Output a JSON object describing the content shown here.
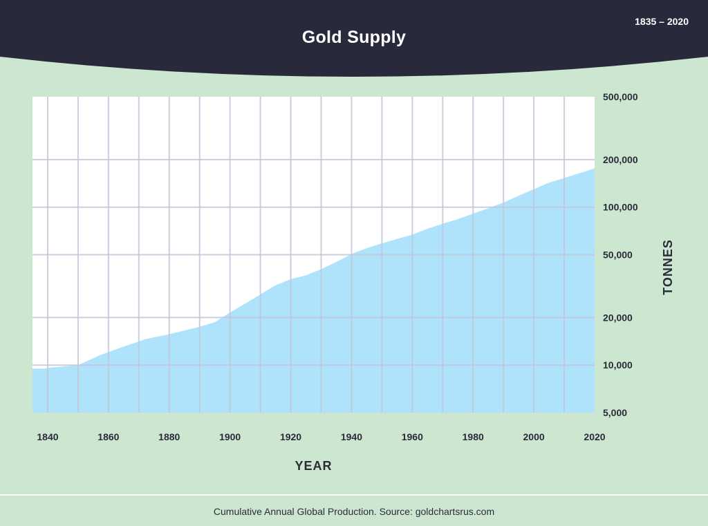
{
  "header": {
    "title": "Gold Supply",
    "date_range": "1835 – 2020",
    "background": "#282a3b"
  },
  "footer": {
    "text": "Cumulative Annual Global Production. Source: goldchartsrus.com"
  },
  "colors": {
    "page_background": "#cde6cf",
    "plot_background": "#ffffff",
    "gridline": "#c3c6d9",
    "area_fill": "#aee3fb",
    "text": "#2a2b3a"
  },
  "chart_data": {
    "type": "area",
    "title": "Gold Supply",
    "xlabel": "YEAR",
    "ylabel": "TONNES",
    "y_scale": "log",
    "xlim": [
      1835,
      2020
    ],
    "ylim": [
      5000,
      500000
    ],
    "x_ticks": [
      1840,
      1860,
      1880,
      1900,
      1920,
      1940,
      1960,
      1980,
      2000,
      2020
    ],
    "y_ticks": [
      5000,
      10000,
      20000,
      50000,
      100000,
      200000,
      500000
    ],
    "y_tick_labels": [
      "5,000",
      "10,000",
      "20,000",
      "50,000",
      "100,000",
      "200,000",
      "500,000"
    ],
    "y_axis_position": "right",
    "grid": true,
    "series": [
      {
        "x": [
          1835,
          1839,
          1840,
          1845,
          1850,
          1852,
          1857,
          1862,
          1867,
          1870,
          1872,
          1880,
          1890,
          1895,
          1900,
          1905,
          1910,
          1915,
          1920,
          1925,
          1930,
          1935,
          1940,
          1945,
          1950,
          1955,
          1960,
          1965,
          1970,
          1975,
          1980,
          1985,
          1990,
          1995,
          2000,
          2005,
          2010,
          2015,
          2020
        ],
        "y": [
          9500,
          9500,
          9600,
          9800,
          10000,
          10400,
          11500,
          12500,
          13500,
          14100,
          14600,
          15700,
          17500,
          18700,
          21500,
          24500,
          28000,
          32000,
          35000,
          37000,
          40500,
          45000,
          50500,
          55000,
          59000,
          63000,
          67000,
          73000,
          78500,
          84000,
          91000,
          98500,
          107000,
          118000,
          130000,
          143000,
          153000,
          164000,
          176000
        ]
      }
    ]
  }
}
